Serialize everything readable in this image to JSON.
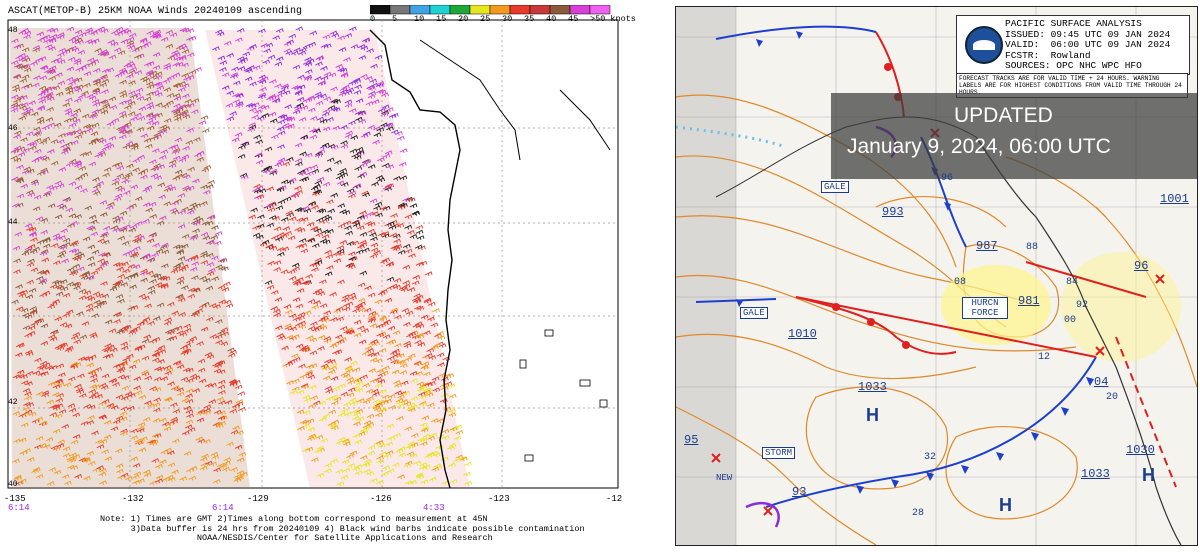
{
  "left": {
    "title": "ASCAT(METOP-B) 25KM NOAA Winds 20240109 ascending",
    "legend": {
      "labels": [
        "0",
        "5",
        "10",
        "15",
        "20",
        "25",
        "30",
        "35",
        "40",
        "45",
        ">50 knots"
      ],
      "colors": [
        "#111111",
        "#777777",
        "#3fa3e6",
        "#1fd3d3",
        "#1ea83a",
        "#e6e61e",
        "#f29a1e",
        "#e83a2a",
        "#c83a3a",
        "#8a5a3a",
        "#d640d6",
        "#f060f0"
      ]
    },
    "x_ticks": [
      "-135",
      "-132",
      "-129",
      "-126",
      "-123",
      "-12"
    ],
    "x_times": [
      "6:14",
      "6:14",
      "4:33"
    ],
    "y_ticks": [
      "48",
      "46",
      "44",
      "42",
      "40"
    ],
    "footer": "Note: 1) Times are GMT 2)Times along bottom correspond to measurement at 45N\n      3)Data buffer is 24 hrs from 20240109 4) Black wind barbs indicate possible contamination\n                   NOAA/NESDIS/Center for Satellite Applications and Research"
  },
  "right": {
    "header": "PACIFIC SURFACE ANALYSIS\nISSUED: 09:45 UTC 09 JAN 2024\nVALID:  06:00 UTC 09 JAN 2024\nFCSTR:  Rowland\nSOURCES: OPC NHC WPC HFO",
    "note": "FORECAST TRACKS ARE FOR VALID TIME + 24 HOURS. WARNING LABELS ARE FOR HIGHEST CONDITIONS FROM VALID TIME THROUGH 24 HOURS.",
    "updated_line1": "UPDATED",
    "updated_line2": "January 9, 2024, 06:00 UTC",
    "pressure_labels": [
      "993",
      "987",
      "981",
      "1001",
      "96",
      "1010",
      "1033",
      "1033",
      "1030",
      "95",
      "93",
      "04",
      "88",
      "84",
      "92",
      "00",
      "08",
      "12",
      "28",
      "32",
      "20",
      "96"
    ],
    "warnings": [
      "GALE",
      "GALE",
      "HURCN FORCE",
      "STORM"
    ],
    "highs": [
      "H",
      "H",
      "H"
    ],
    "new_label": "NEW"
  }
}
